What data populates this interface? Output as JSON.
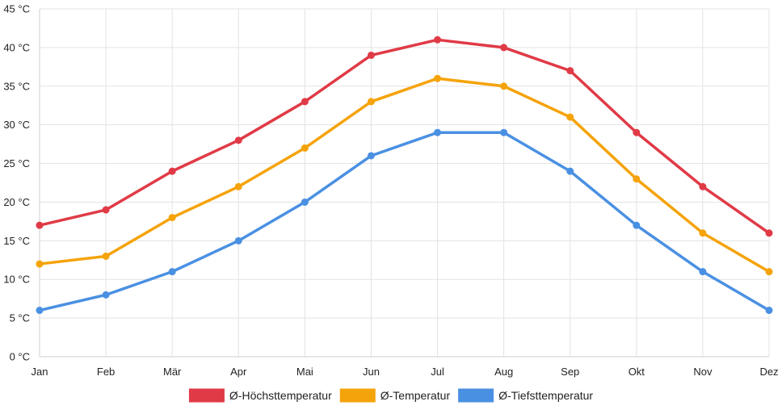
{
  "chart_data": {
    "type": "line",
    "title": "",
    "xlabel": "",
    "ylabel": "",
    "categories": [
      "Jan",
      "Feb",
      "Mär",
      "Apr",
      "Mai",
      "Jun",
      "Jul",
      "Aug",
      "Sep",
      "Okt",
      "Nov",
      "Dez"
    ],
    "ylim": [
      0,
      45
    ],
    "y_ticks": [
      0,
      5,
      10,
      15,
      20,
      25,
      30,
      35,
      40,
      45
    ],
    "y_tick_labels": [
      "0 °C",
      "5 °C",
      "10 °C",
      "15 °C",
      "20 °C",
      "25 °C",
      "30 °C",
      "35 °C",
      "40 °C",
      "45 °C"
    ],
    "grid": true,
    "legend_position": "bottom",
    "series": [
      {
        "name": "Ø-Höchsttemperatur",
        "color": "#e03a46",
        "values": [
          17,
          19,
          24,
          28,
          33,
          39,
          41,
          40,
          37,
          29,
          22,
          16
        ]
      },
      {
        "name": "Ø-Temperatur",
        "color": "#f5a30a",
        "values": [
          12,
          13,
          18,
          22,
          27,
          33,
          36,
          35,
          31,
          23,
          16,
          11
        ]
      },
      {
        "name": "Ø-Tiefsttemperatur",
        "color": "#4a90e2",
        "values": [
          6,
          8,
          11,
          15,
          20,
          26,
          29,
          29,
          24,
          17,
          11,
          6
        ]
      }
    ]
  }
}
